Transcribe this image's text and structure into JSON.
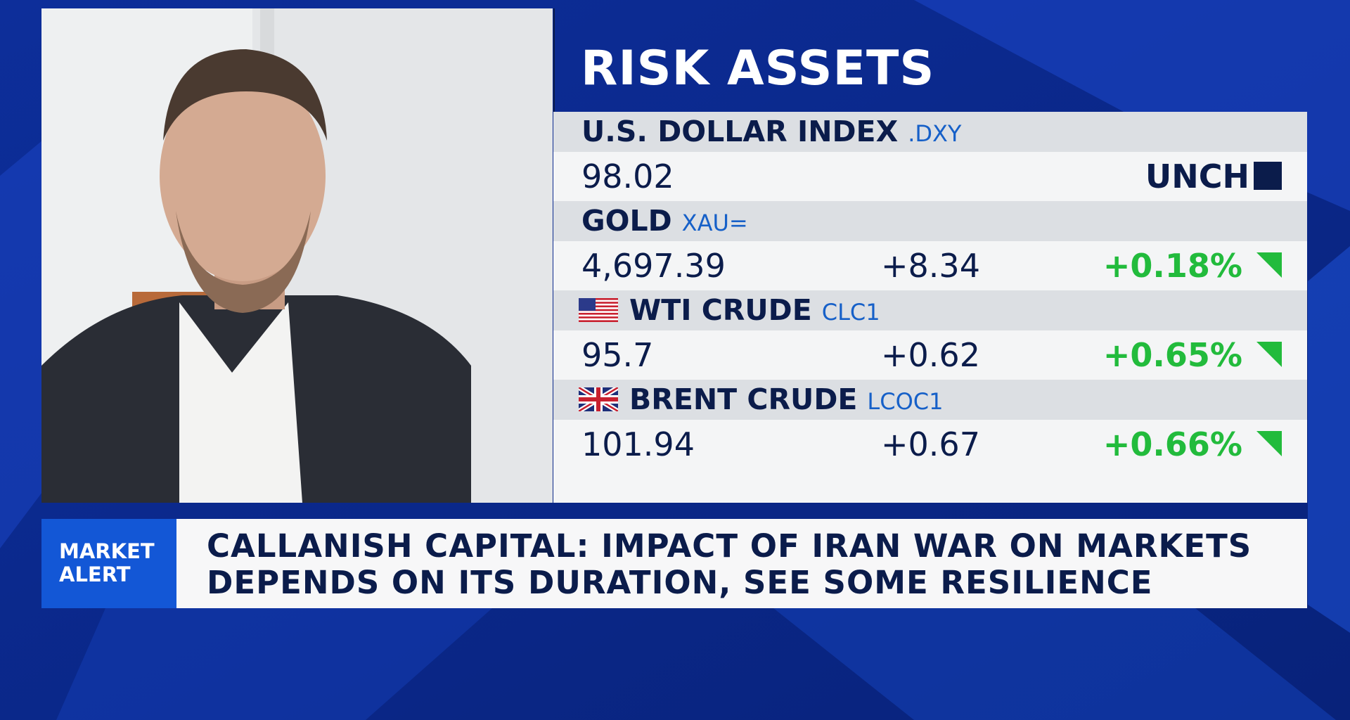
{
  "panel": {
    "title": "RISK ASSETS",
    "rows": [
      {
        "name": "U.S. DOLLAR INDEX",
        "ticker": ".DXY",
        "price": "98.02",
        "change": null,
        "percent": null,
        "status": "UNCH",
        "flag": null
      },
      {
        "name": "GOLD",
        "ticker": "XAU=",
        "price": "4,697.39",
        "change": "+8.34",
        "percent": "+0.18%",
        "status": null,
        "flag": null
      },
      {
        "name": "WTI CRUDE",
        "ticker": "CLC1",
        "price": "95.7",
        "change": "+0.62",
        "percent": "+0.65%",
        "status": null,
        "flag": "us"
      },
      {
        "name": "BRENT CRUDE",
        "ticker": "LCOC1",
        "price": "101.94",
        "change": "+0.67",
        "percent": "+0.66%",
        "status": null,
        "flag": "uk"
      }
    ]
  },
  "ticker_bar": {
    "label": [
      "MARKET",
      "ALERT"
    ],
    "headline": [
      "CALLANISH CAPITAL: IMPACT OF IRAN WAR ON MARKETS",
      "DEPENDS ON ITS DURATION, SEE SOME RESILIENCE"
    ]
  }
}
